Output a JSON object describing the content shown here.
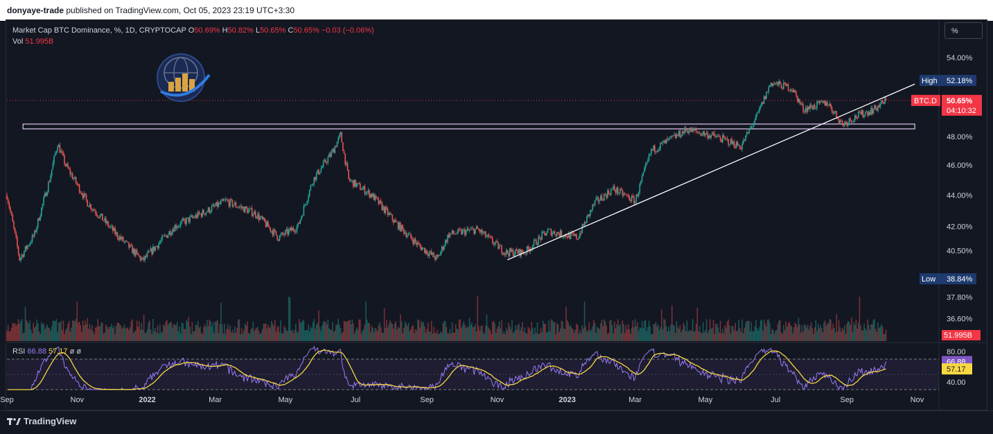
{
  "header": {
    "publisher": "donyaye-trade",
    "published_text": "published on TradingView.com, Oct 05, 2023 23:19 UTC+3:30"
  },
  "legend": {
    "symbol": "Market Cap BTC Dominance, %, 1D, CRYPTOCAP",
    "o_label": "O",
    "o_value": "50.69%",
    "h_label": "H",
    "h_value": "50.82%",
    "l_label": "L",
    "l_value": "50.65%",
    "c_label": "C",
    "c_value": "50.65%",
    "change": "−0.03 (−0.06%)",
    "vol_label": "Vol",
    "vol_value": "51.995B"
  },
  "rsi_legend": {
    "label": "RSI",
    "rsi_value": "66.88",
    "ma_value": "57.17",
    "extra1": "ø",
    "extra2": "ø"
  },
  "unit_button": "%",
  "footer": {
    "brand": "TradingView"
  },
  "colors": {
    "background": "#131722",
    "up": "#26a69a",
    "down": "#ef5350",
    "trendline": "#ffffff",
    "zone": "#e0c8ee",
    "rsi": "#9c7cf4",
    "rsi_ma": "#f7d842",
    "badge_current": "#f23645",
    "badge_hilo": "#1e3a6e"
  },
  "chart_data": {
    "type": "candlestick",
    "yscale": "log",
    "ylim": [
      35.4,
      55.4
    ],
    "y_ticks": [
      "54.00%",
      "48.00%",
      "46.00%",
      "44.00%",
      "42.00%",
      "40.50%",
      "37.80%",
      "36.60%"
    ],
    "y_tick_values": [
      54.0,
      48.0,
      46.0,
      44.0,
      42.0,
      40.5,
      37.8,
      36.6
    ],
    "x_ticks": [
      "Sep",
      "Nov",
      "2022",
      "Mar",
      "May",
      "Jul",
      "Sep",
      "Nov",
      "2023",
      "Mar",
      "May",
      "Jul",
      "Sep",
      "Nov"
    ],
    "x_tick_dates": [
      "2021-09-01",
      "2021-11-01",
      "2022-01-01",
      "2022-03-01",
      "2022-05-01",
      "2022-07-01",
      "2022-09-01",
      "2022-11-01",
      "2023-01-01",
      "2023-03-01",
      "2023-05-01",
      "2023-07-01",
      "2023-09-01",
      "2023-11-01"
    ],
    "x_range": [
      "2021-09-01",
      "2023-11-20"
    ],
    "price_path": [
      {
        "date": "2021-09-01",
        "value": 44.0
      },
      {
        "date": "2021-09-12",
        "value": 40.0
      },
      {
        "date": "2021-09-25",
        "value": 41.5
      },
      {
        "date": "2021-10-08",
        "value": 45.0
      },
      {
        "date": "2021-10-15",
        "value": 47.5
      },
      {
        "date": "2021-10-22",
        "value": 46.0
      },
      {
        "date": "2021-11-10",
        "value": 43.5
      },
      {
        "date": "2021-12-05",
        "value": 41.5
      },
      {
        "date": "2021-12-28",
        "value": 39.9
      },
      {
        "date": "2022-01-25",
        "value": 42.0
      },
      {
        "date": "2022-02-20",
        "value": 42.9
      },
      {
        "date": "2022-03-10",
        "value": 43.6
      },
      {
        "date": "2022-04-05",
        "value": 42.8
      },
      {
        "date": "2022-04-25",
        "value": 41.3
      },
      {
        "date": "2022-05-12",
        "value": 42.0
      },
      {
        "date": "2022-05-25",
        "value": 45.0
      },
      {
        "date": "2022-06-10",
        "value": 46.8
      },
      {
        "date": "2022-06-18",
        "value": 48.1
      },
      {
        "date": "2022-06-25",
        "value": 45.0
      },
      {
        "date": "2022-07-15",
        "value": 44.0
      },
      {
        "date": "2022-08-05",
        "value": 42.2
      },
      {
        "date": "2022-08-25",
        "value": 40.8
      },
      {
        "date": "2022-09-10",
        "value": 40.0
      },
      {
        "date": "2022-09-20",
        "value": 41.5
      },
      {
        "date": "2022-10-15",
        "value": 41.8
      },
      {
        "date": "2022-11-08",
        "value": 40.4
      },
      {
        "date": "2022-11-25",
        "value": 40.4
      },
      {
        "date": "2022-12-15",
        "value": 41.7
      },
      {
        "date": "2023-01-10",
        "value": 41.3
      },
      {
        "date": "2023-01-25",
        "value": 43.5
      },
      {
        "date": "2023-02-10",
        "value": 44.4
      },
      {
        "date": "2023-03-01",
        "value": 43.6
      },
      {
        "date": "2023-03-15",
        "value": 47.0
      },
      {
        "date": "2023-04-01",
        "value": 47.8
      },
      {
        "date": "2023-04-15",
        "value": 48.5
      },
      {
        "date": "2023-05-10",
        "value": 48.0
      },
      {
        "date": "2023-06-01",
        "value": 47.3
      },
      {
        "date": "2023-06-15",
        "value": 49.5
      },
      {
        "date": "2023-06-27",
        "value": 52.0
      },
      {
        "date": "2023-07-15",
        "value": 51.6
      },
      {
        "date": "2023-07-25",
        "value": 50.0
      },
      {
        "date": "2023-08-15",
        "value": 50.5
      },
      {
        "date": "2023-08-28",
        "value": 48.9
      },
      {
        "date": "2023-09-10",
        "value": 49.5
      },
      {
        "date": "2023-09-25",
        "value": 50.0
      },
      {
        "date": "2023-10-05",
        "value": 50.65
      }
    ],
    "volume_axis_label": "51.995B",
    "high_label": "High",
    "high_value": "52.18%",
    "high": 52.18,
    "low_label": "Low",
    "low_value": "38.84%",
    "low": 38.84,
    "current_label": "BTC.D",
    "current_value": "50.65%",
    "current": 50.65,
    "countdown": "04:10:32",
    "zone": {
      "start": "2021-09-15",
      "end": "2023-10-30",
      "low": 48.55,
      "high": 48.9
    },
    "trendline": {
      "start_date": "2022-11-10",
      "start_value": 39.95,
      "end_date": "2023-10-30",
      "end_value": 51.9
    },
    "rsi": {
      "y_ticks": [
        "80.00",
        "40.00"
      ],
      "y_tick_values": [
        80,
        40
      ],
      "levels": [
        70,
        30
      ],
      "current_rsi": 66.88,
      "current_ma": 57.17
    }
  }
}
